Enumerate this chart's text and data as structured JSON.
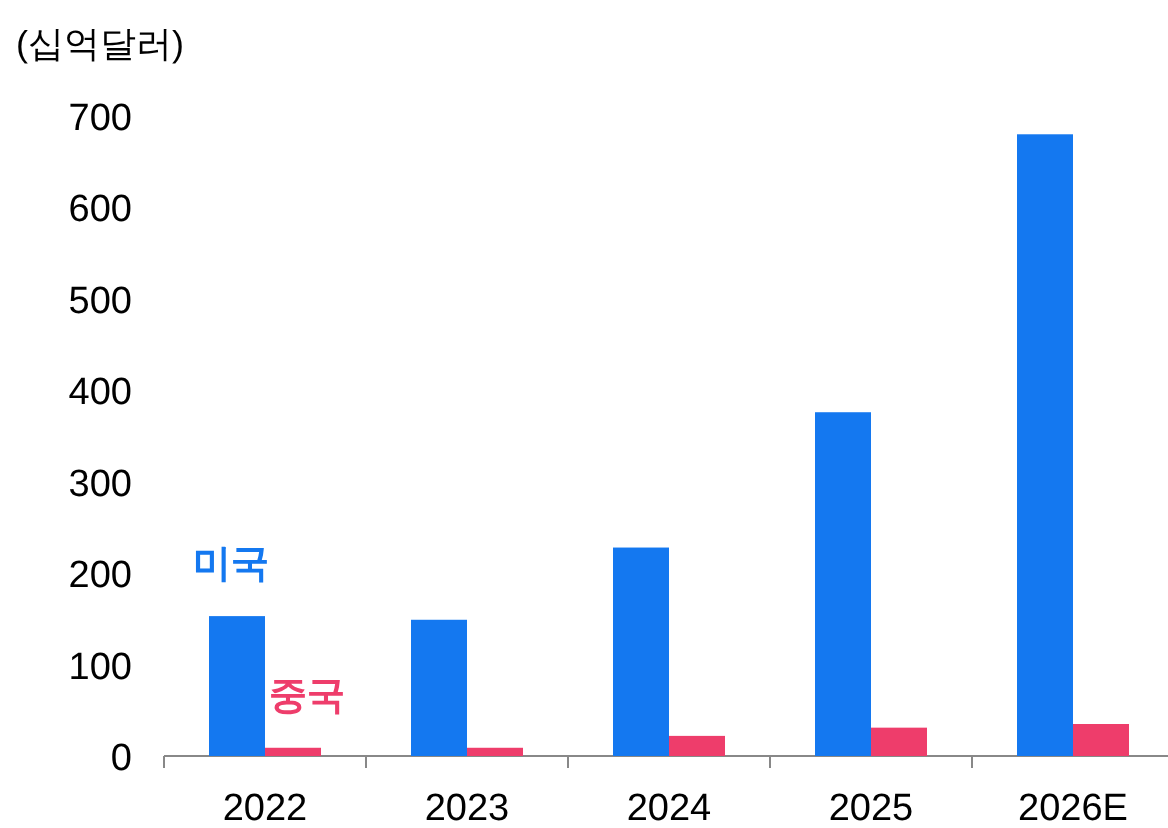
{
  "chart_data": {
    "type": "bar",
    "ylabel": "(십억달러)",
    "categories": [
      "2022",
      "2023",
      "2024",
      "2025",
      "2026E"
    ],
    "series": [
      {
        "name": "미국",
        "color": "#1478f0",
        "values": [
          153,
          149,
          228,
          376,
          680
        ]
      },
      {
        "name": "중국",
        "color": "#ee3d6b",
        "values": [
          9,
          9,
          22,
          31,
          35
        ]
      }
    ],
    "ylim": [
      0,
      700
    ],
    "yticks": [
      0,
      100,
      200,
      300,
      400,
      500,
      600,
      700
    ]
  }
}
